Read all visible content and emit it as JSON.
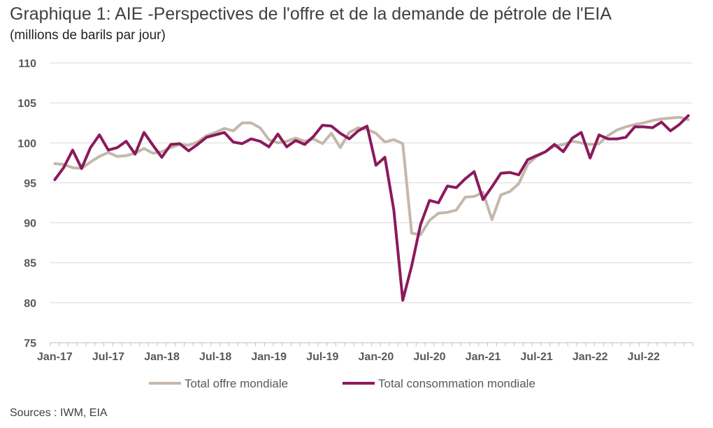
{
  "chart_data": {
    "type": "line",
    "title": "Graphique 1: AIE -Perspectives de l'offre et de la demande de pétrole de l'EIA",
    "subtitle": "(millions de barils par jour)",
    "ylim": [
      75,
      110
    ],
    "yticks": [
      75,
      80,
      85,
      90,
      95,
      100,
      105,
      110
    ],
    "grid": true,
    "legend_position": "bottom",
    "x_tick_labels": [
      "Jan-17",
      "Jul-17",
      "Jan-18",
      "Jul-18",
      "Jan-19",
      "Jul-19",
      "Jan-20",
      "Jul-20",
      "Jan-21",
      "Jul-21",
      "Jan-22",
      "Jul-22"
    ],
    "x": [
      "2017-01",
      "2017-02",
      "2017-03",
      "2017-04",
      "2017-05",
      "2017-06",
      "2017-07",
      "2017-08",
      "2017-09",
      "2017-10",
      "2017-11",
      "2017-12",
      "2018-01",
      "2018-02",
      "2018-03",
      "2018-04",
      "2018-05",
      "2018-06",
      "2018-07",
      "2018-08",
      "2018-09",
      "2018-10",
      "2018-11",
      "2018-12",
      "2019-01",
      "2019-02",
      "2019-03",
      "2019-04",
      "2019-05",
      "2019-06",
      "2019-07",
      "2019-08",
      "2019-09",
      "2019-10",
      "2019-11",
      "2019-12",
      "2020-01",
      "2020-02",
      "2020-03",
      "2020-04",
      "2020-05",
      "2020-06",
      "2020-07",
      "2020-08",
      "2020-09",
      "2020-10",
      "2020-11",
      "2020-12",
      "2021-01",
      "2021-02",
      "2021-03",
      "2021-04",
      "2021-05",
      "2021-06",
      "2021-07",
      "2021-08",
      "2021-09",
      "2021-10",
      "2021-11",
      "2021-12",
      "2022-01",
      "2022-02",
      "2022-03",
      "2022-04",
      "2022-05",
      "2022-06",
      "2022-07",
      "2022-08",
      "2022-09",
      "2022-10",
      "2022-11",
      "2022-12"
    ],
    "series": [
      {
        "name": "Total offre mondiale",
        "color": "#c4b8aa",
        "values": [
          97.4,
          97.3,
          96.9,
          96.8,
          97.6,
          98.3,
          98.8,
          98.3,
          98.4,
          98.7,
          99.3,
          98.7,
          98.9,
          99.4,
          99.8,
          99.7,
          100.1,
          100.9,
          101.3,
          101.8,
          101.5,
          102.5,
          102.5,
          101.9,
          100.4,
          100.0,
          100.2,
          100.6,
          100.2,
          100.5,
          99.9,
          101.2,
          99.4,
          101.3,
          101.9,
          101.7,
          101.2,
          100.1,
          100.4,
          99.9,
          88.7,
          88.5,
          90.3,
          91.2,
          91.3,
          91.6,
          93.2,
          93.3,
          93.8,
          90.4,
          93.5,
          93.9,
          94.9,
          97.3,
          98.3,
          98.9,
          99.6,
          99.8,
          100.2,
          100.0,
          99.8,
          99.9,
          100.9,
          101.6,
          102.0,
          102.3,
          102.5,
          102.8,
          103.0,
          103.1,
          103.2,
          102.9
        ]
      },
      {
        "name": "Total consommation mondiale",
        "color": "#8b1a5c",
        "values": [
          95.4,
          96.9,
          99.1,
          96.8,
          99.4,
          101.0,
          99.1,
          99.4,
          100.2,
          98.6,
          101.3,
          99.7,
          98.2,
          99.8,
          99.9,
          99.0,
          99.8,
          100.7,
          101.0,
          101.3,
          100.1,
          99.9,
          100.5,
          100.2,
          99.5,
          101.1,
          99.5,
          100.3,
          99.8,
          100.8,
          102.2,
          102.1,
          101.2,
          100.5,
          101.5,
          102.1,
          97.2,
          98.2,
          91.6,
          80.3,
          84.6,
          89.8,
          92.8,
          92.5,
          94.6,
          94.4,
          95.5,
          96.4,
          92.9,
          94.5,
          96.2,
          96.3,
          96.0,
          97.9,
          98.4,
          98.9,
          99.8,
          98.9,
          100.6,
          101.3,
          98.1,
          101.0,
          100.5,
          100.5,
          100.7,
          102.0,
          102.0,
          101.9,
          102.6,
          101.5,
          102.3,
          103.4
        ]
      }
    ]
  },
  "source": "Sources : IWM, EIA"
}
